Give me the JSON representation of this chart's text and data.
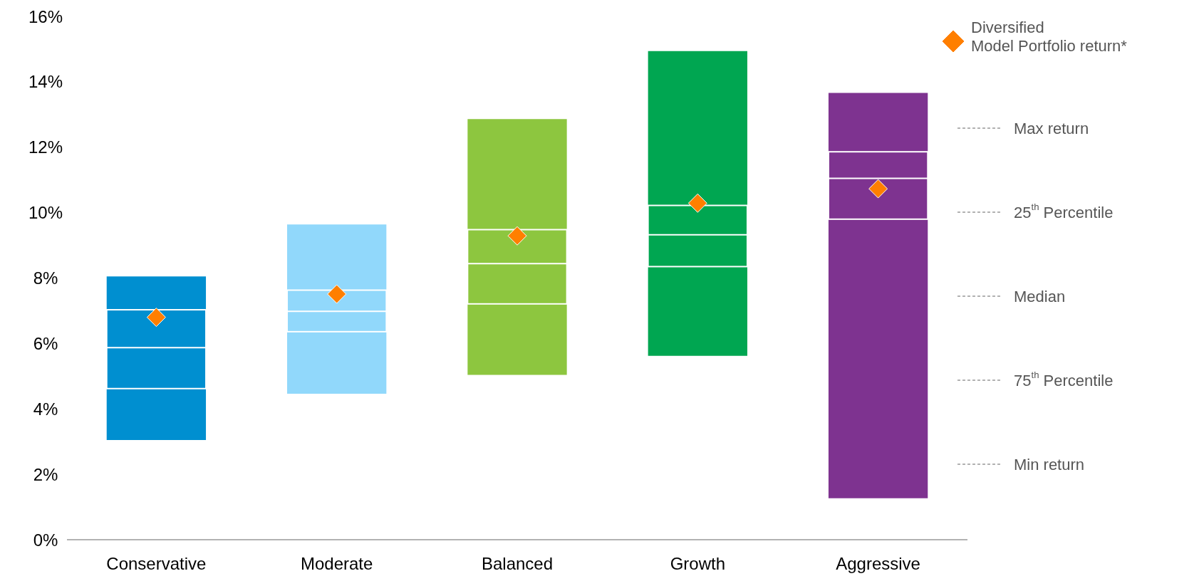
{
  "chart_data": {
    "type": "box",
    "categories": [
      "Conservative",
      "Moderate",
      "Balanced",
      "Growth",
      "Aggressive"
    ],
    "boxes": [
      {
        "low": 3.05,
        "q1": 4.62,
        "median": 5.87,
        "q3": 7.03,
        "high": 8.05
      },
      {
        "low": 4.46,
        "q1": 6.36,
        "median": 6.98,
        "q3": 7.63,
        "high": 9.64
      },
      {
        "low": 5.04,
        "q1": 7.21,
        "median": 8.44,
        "q3": 9.48,
        "high": 12.86
      },
      {
        "low": 5.62,
        "q1": 8.35,
        "median": 9.32,
        "q3": 10.22,
        "high": 14.94
      },
      {
        "low": 1.27,
        "q1": 9.8,
        "median": 11.05,
        "q3": 11.86,
        "high": 13.66
      }
    ],
    "colors": [
      "#008fd0",
      "#91d8fb",
      "#8dc63f",
      "#00a651",
      "#7e3390"
    ],
    "series": [
      {
        "type": "scatter",
        "name": "Diversified Model Portfolio return*",
        "color": "#ff7f00",
        "marker": "diamond",
        "x": [
          "Conservative",
          "Moderate",
          "Balanced",
          "Growth",
          "Aggressive"
        ],
        "values": [
          6.8,
          7.51,
          9.29,
          10.29,
          10.73
        ]
      }
    ],
    "ylim": [
      0,
      16
    ],
    "yticks": [
      {
        "value": 0,
        "label": "0%"
      },
      {
        "value": 2,
        "label": "2%"
      },
      {
        "value": 4,
        "label": "4%"
      },
      {
        "value": 6,
        "label": "6%"
      },
      {
        "value": 8,
        "label": "8%"
      },
      {
        "value": 10,
        "label": "10%"
      },
      {
        "value": 12,
        "label": "12%"
      },
      {
        "value": 14,
        "label": "14%"
      },
      {
        "value": 16,
        "label": "16%"
      }
    ],
    "legend": "top right",
    "annotations": [
      "Max return",
      "25$^{th}$ Percentile",
      "Median",
      "75$^{th}$ Percentile",
      "Min return"
    ]
  }
}
